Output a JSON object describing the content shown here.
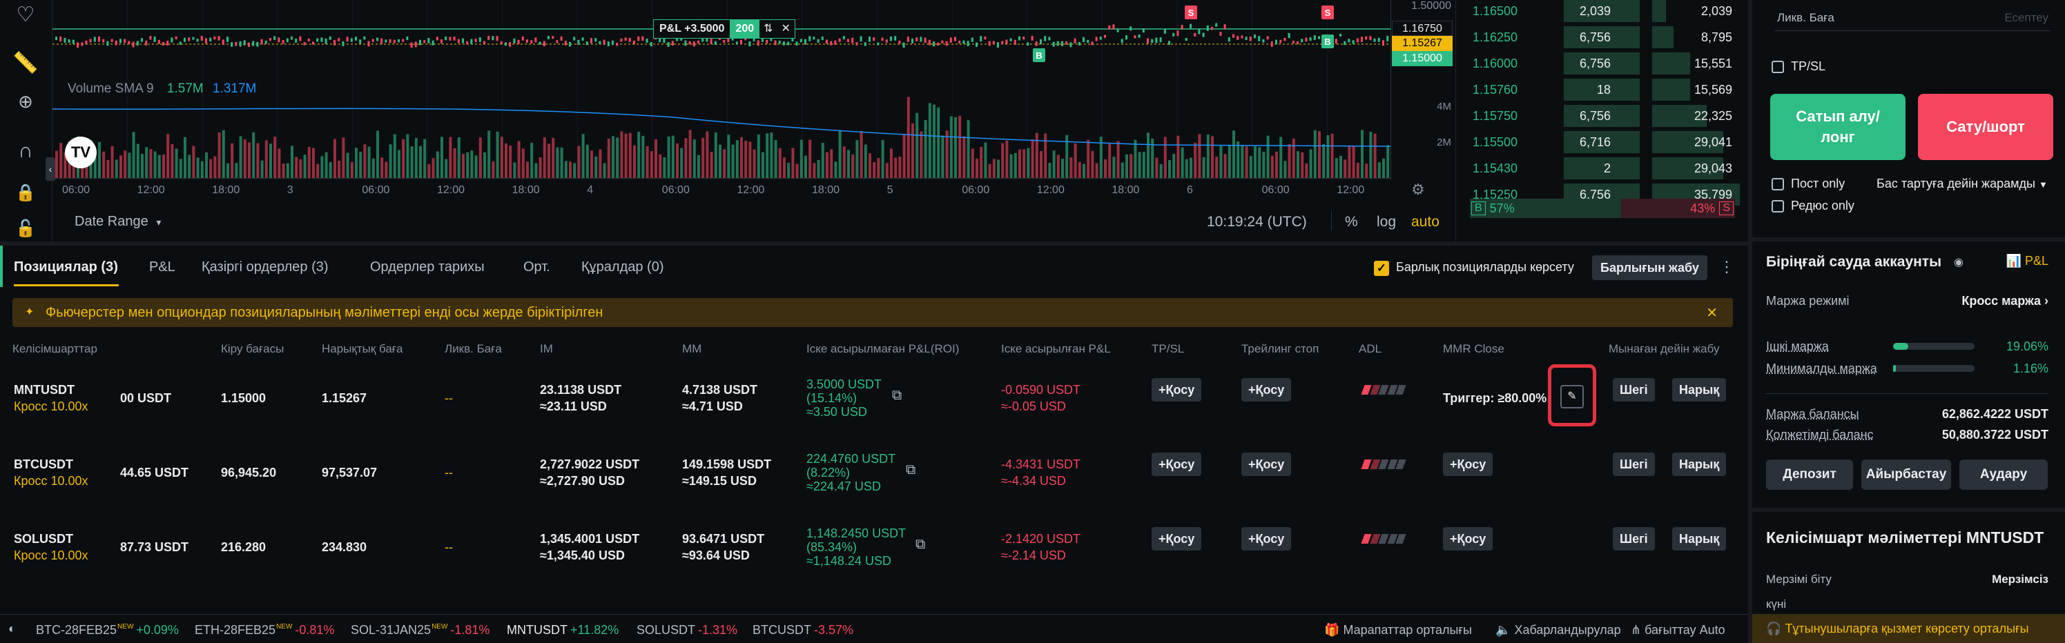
{
  "chart": {
    "price_scale": [
      "1.50000",
      "1.16750",
      "1.15267",
      "1.15000"
    ],
    "pnl_label": "P&L +3.5000",
    "pnl_qty": "200",
    "volume_label": "Volume SMA 9",
    "volume_v1": "1.57M",
    "volume_v2": "1.317M",
    "vol_scale": [
      "4M",
      "2M"
    ],
    "time_labels": [
      "06:00",
      "12:00",
      "18:00",
      "3",
      "06:00",
      "12:00",
      "18:00",
      "4",
      "06:00",
      "12:00",
      "18:00",
      "5",
      "06:00",
      "12:00",
      "18:00",
      "6",
      "06:00",
      "12:00"
    ],
    "date_range": "Date Range",
    "clock": "10:19:24 (UTC)",
    "pct": "%",
    "log": "log",
    "auto": "auto",
    "markers": [
      "S",
      "B",
      "S",
      "B"
    ]
  },
  "orderbook": {
    "rows": [
      {
        "price": "1.16500",
        "qty": "2,039",
        "total": "2,039"
      },
      {
        "price": "1.16250",
        "qty": "6,756",
        "total": "8,795"
      },
      {
        "price": "1.16000",
        "qty": "6,756",
        "total": "15,551"
      },
      {
        "price": "1.15760",
        "qty": "18",
        "total": "15,569"
      },
      {
        "price": "1.15750",
        "qty": "6,756",
        "total": "22,325"
      },
      {
        "price": "1.15500",
        "qty": "6,716",
        "total": "29,041"
      },
      {
        "price": "1.15430",
        "qty": "2",
        "total": "29,043"
      },
      {
        "price": "1.15250",
        "qty": "6,756",
        "total": "35,799"
      }
    ],
    "buy_label": "B",
    "buy_pct": "57%",
    "sell_pct": "43%",
    "sell_label": "S"
  },
  "right": {
    "liq_label": "Ликв. Баға",
    "liq_value": "Есептеу",
    "tpsl": "TP/SL",
    "long_btn": "Сатып алу/ лонг",
    "short_btn": "Сату/шорт",
    "post_only": "Пост only",
    "reduce_only": "Редюс only",
    "tif": "Бас тартуға дейін жарамды",
    "account_title": "Біріңғай сауда аккаунты",
    "pnl_link": "P&L",
    "margin_mode_label": "Маржа режимі",
    "margin_mode_value": "Кросс маржа",
    "im_label": "Ішкі маржа",
    "im_value": "19.06%",
    "mm_label": "Минималды маржа",
    "mm_value": "1.16%",
    "margin_balance_label": "Маржа балансы",
    "margin_balance_value": "62,862.4222 USDT",
    "available_label": "Қолжетімді баланс",
    "available_value": "50,880.3722 USDT",
    "deposit": "Депозит",
    "exchange": "Айырбастау",
    "transfer": "Аудару",
    "contract_title": "Келісімшарт мәліметтері MNTUSDT",
    "expiry_label": "Мерзімі біту",
    "expiry_value": "Мерзімсіз",
    "day_label": "күні",
    "support": "Тұтынушыларға қызмет көрсету орталығы"
  },
  "tabs": {
    "positions": "Позициялар (3)",
    "pnl": "P&L",
    "open_orders": "Қазіргі ордерлер (3)",
    "order_history": "Ордерлер тарихы",
    "avg": "Орт.",
    "tools": "Құралдар (0)",
    "show_all": "Барлық позицияларды көрсету",
    "close_all": "Барлығын жабу"
  },
  "banner": "Фьючерстер мен опциондар позицияларының мәліметтері енді осы жерде біріктірілген",
  "headers": {
    "contracts": "Келісімшарттар",
    "entry": "Кіру бағасы",
    "mark": "Нарықтық баға",
    "liq": "Ликв. Баға",
    "im": "IM",
    "mm": "MM",
    "unrealized": "Іске асырылмаған P&L(ROI)",
    "realized": "Іске асырылған P&L",
    "tpsl": "TP/SL",
    "trailing": "Трейлинг стоп",
    "adl": "ADL",
    "mmr": "MMR Close",
    "close_by": "Мынаған дейін жабу"
  },
  "positions": [
    {
      "symbol": "MNTUSDT",
      "mode": "Кросс 10.00x",
      "size": "00 USDT",
      "entry": "1.15000",
      "mark": "1.15267",
      "liq": "--",
      "im1": "23.1138 USDT",
      "im2": "≈23.11 USD",
      "mm1": "4.7138 USDT",
      "mm2": "≈4.71 USD",
      "upnl1": "3.5000 USDT",
      "upnl2": "(15.14%)",
      "upnl3": "≈3.50 USD",
      "rpnl1": "-0.0590 USDT",
      "rpnl2": "≈-0.05 USD",
      "tpsl": "+Қосу",
      "trailing": "+Қосу",
      "mmr": "Триггер: ≥80.00%",
      "limit": "Шегі",
      "market": "Нарық"
    },
    {
      "symbol": "BTCUSDT",
      "mode": "Кросс 10.00x",
      "size": "44.65 USDT",
      "entry": "96,945.20",
      "mark": "97,537.07",
      "liq": "--",
      "im1": "2,727.9022 USDT",
      "im2": "≈2,727.90 USD",
      "mm1": "149.1598 USDT",
      "mm2": "≈149.15 USD",
      "upnl1": "224.4760 USDT",
      "upnl2": "(8.22%)",
      "upnl3": "≈224.47 USD",
      "rpnl1": "-4.3431 USDT",
      "rpnl2": "≈-4.34 USD",
      "tpsl": "+Қосу",
      "trailing": "+Қосу",
      "mmr": "+Қосу",
      "limit": "Шегі",
      "market": "Нарық"
    },
    {
      "symbol": "SOLUSDT",
      "mode": "Кросс 10.00x",
      "size": "87.73 USDT",
      "entry": "216.280",
      "mark": "234.830",
      "liq": "--",
      "im1": "1,345.4001 USDT",
      "im2": "≈1,345.40 USD",
      "mm1": "93.6471 USDT",
      "mm2": "≈93.64 USD",
      "upnl1": "1,148.2450 USDT",
      "upnl2": "(85.34%)",
      "upnl3": "≈1,148.24 USD",
      "rpnl1": "-2.1420 USDT",
      "rpnl2": "≈-2.14 USD",
      "tpsl": "+Қосу",
      "trailing": "+Қосу",
      "mmr": "+Қосу",
      "limit": "Шегі",
      "market": "Нарық"
    }
  ],
  "ticker": {
    "items": [
      {
        "sym": "BTC-28FEB25",
        "chg": "+0.09%",
        "color": "#2ebd85",
        "new": "NEW"
      },
      {
        "sym": "ETH-28FEB25",
        "chg": "-0.81%",
        "color": "#f6465d",
        "new": "NEW"
      },
      {
        "sym": "SOL-31JAN25",
        "chg": "-1.81%",
        "color": "#f6465d",
        "new": "NEW"
      },
      {
        "sym": "MNTUSDT",
        "chg": "+11.82%",
        "color": "#2ebd85",
        "new": ""
      },
      {
        "sym": "SOLUSDT",
        "chg": "-1.31%",
        "color": "#f6465d",
        "new": ""
      },
      {
        "sym": "BTCUSDT",
        "chg": "-3.57%",
        "color": "#f6465d",
        "new": ""
      }
    ],
    "rewards": "Марапаттар орталығы",
    "announcements": "Хабарландырулар",
    "routing": "бағыттау Auto"
  },
  "colors": {
    "green": "#2ebd85",
    "red": "#f6465d",
    "accent": "#f0b90b",
    "highlight": "#e5333f"
  }
}
